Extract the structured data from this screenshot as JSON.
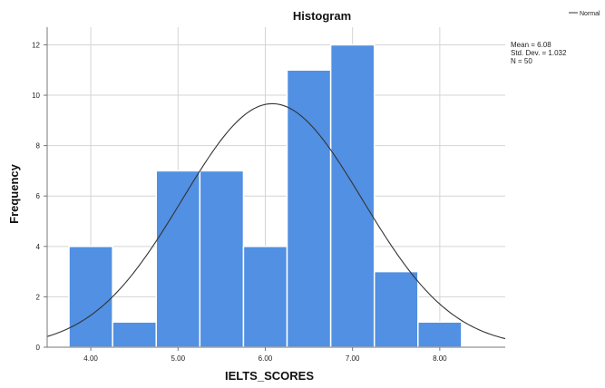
{
  "chart_data": {
    "type": "bar",
    "title": "Histogram",
    "xlabel": "IELTS_SCORES",
    "ylabel": "Frequency",
    "bin_width": 0.5,
    "bins": [
      {
        "start": 3.75,
        "end": 4.25,
        "count": 4
      },
      {
        "start": 4.25,
        "end": 4.75,
        "count": 1
      },
      {
        "start": 4.75,
        "end": 5.25,
        "count": 7
      },
      {
        "start": 5.25,
        "end": 5.75,
        "count": 7
      },
      {
        "start": 5.75,
        "end": 6.25,
        "count": 4
      },
      {
        "start": 6.25,
        "end": 6.75,
        "count": 11
      },
      {
        "start": 6.75,
        "end": 7.25,
        "count": 12
      },
      {
        "start": 7.25,
        "end": 7.75,
        "count": 3
      },
      {
        "start": 7.75,
        "end": 8.25,
        "count": 1
      }
    ],
    "x_ticks": [
      "4.00",
      "5.00",
      "6.00",
      "7.00",
      "8.00"
    ],
    "y_ticks": [
      "0",
      "2",
      "4",
      "6",
      "8",
      "10",
      "12"
    ],
    "xlim": [
      3.5,
      8.75
    ],
    "ylim": [
      0,
      12.7
    ],
    "normal_curve": {
      "mean": 6.08,
      "std_dev": 1.032,
      "n": 50
    },
    "stats_lines": [
      "Mean = 6.08",
      "Std. Dev. = 1.032",
      "N = 50"
    ],
    "legend": {
      "entries": [
        "Normal"
      ],
      "position": "top-right"
    },
    "grid": true,
    "colors": {
      "bar": "#5190e2",
      "bar_edge": "#ffffff",
      "curve": "#333333",
      "grid": "#d4d4d4",
      "axis": "#777777"
    }
  }
}
